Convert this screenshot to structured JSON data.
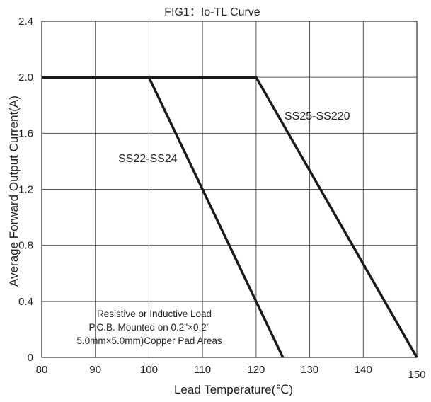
{
  "chart_data": {
    "type": "line",
    "title": "FIG1：Io-TL Curve",
    "xlabel": "Lead Temperature(℃)",
    "ylabel": "Average Forward Output Current(A)",
    "xlim": [
      80,
      150
    ],
    "ylim": [
      0,
      2.4
    ],
    "x_ticks": [
      "80",
      "90",
      "100",
      "110",
      "120",
      "130",
      "140",
      "150"
    ],
    "y_ticks": [
      "0",
      "0.4",
      "0.8",
      "1.2",
      "1.6",
      "2.0",
      "2.4"
    ],
    "grid": true,
    "series": [
      {
        "name": "SS22-SS24",
        "color": "#1a1a1a",
        "points": [
          {
            "x": 80,
            "y": 2.0
          },
          {
            "x": 100,
            "y": 2.0
          },
          {
            "x": 125,
            "y": 0
          }
        ]
      },
      {
        "name": "SS25-SS220",
        "color": "#1a1a1a",
        "points": [
          {
            "x": 80,
            "y": 2.0
          },
          {
            "x": 120,
            "y": 2.0
          },
          {
            "x": 150,
            "y": 0
          }
        ]
      }
    ],
    "annotation_lines": [
      "Resistive or Inductive Load",
      "P.C.B. Mounted on 0.2\"×0.2\"",
      "5.0mm×5.0mm)Copper Pad Areas"
    ]
  }
}
